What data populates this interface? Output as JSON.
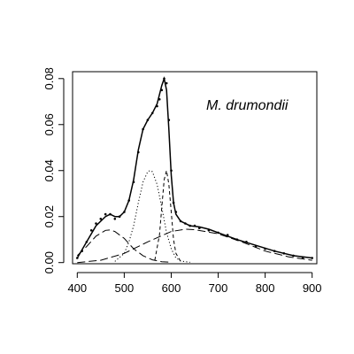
{
  "chart_data": {
    "type": "scatter",
    "title": "",
    "xlabel": "",
    "ylabel": "",
    "xlim": [
      390,
      910
    ],
    "ylim": [
      -0.0005,
      0.083
    ],
    "x_ticks": [
      400,
      500,
      600,
      700,
      800,
      900
    ],
    "y_ticks": [
      0.0,
      0.02,
      0.04,
      0.06,
      0.08
    ],
    "x_tick_labels": [
      "400",
      "500",
      "600",
      "700",
      "800",
      "900"
    ],
    "y_tick_labels": [
      "0.00",
      "0.02",
      "0.04",
      "0.06",
      "0.08"
    ],
    "annotation": "M. drumondii",
    "grid": false,
    "observed_points": {
      "x": [
        400,
        410,
        420,
        430,
        440,
        450,
        460,
        470,
        480,
        490,
        500,
        510,
        520,
        530,
        540,
        550,
        560,
        570,
        575,
        580,
        585,
        590,
        595,
        600,
        605,
        610,
        620,
        630,
        640,
        650,
        660,
        680,
        700,
        720,
        740,
        760,
        780,
        800,
        820,
        840,
        860,
        880,
        900
      ],
      "y": [
        0.002,
        0.005,
        0.009,
        0.014,
        0.017,
        0.019,
        0.021,
        0.021,
        0.019,
        0.02,
        0.022,
        0.027,
        0.035,
        0.048,
        0.058,
        0.062,
        0.065,
        0.068,
        0.071,
        0.075,
        0.08,
        0.078,
        0.062,
        0.04,
        0.026,
        0.022,
        0.018,
        0.017,
        0.016,
        0.016,
        0.015,
        0.014,
        0.013,
        0.012,
        0.01,
        0.009,
        0.007,
        0.006,
        0.005,
        0.004,
        0.003,
        0.002,
        0.002
      ]
    },
    "fit_curve": {
      "x": [
        400,
        420,
        440,
        460,
        470,
        480,
        490,
        500,
        510,
        520,
        530,
        540,
        550,
        560,
        570,
        580,
        585,
        590,
        595,
        600,
        605,
        610,
        620,
        640,
        660,
        680,
        700,
        740,
        780,
        820,
        860,
        900
      ],
      "y": [
        0.002,
        0.009,
        0.016,
        0.02,
        0.021,
        0.02,
        0.02,
        0.022,
        0.027,
        0.036,
        0.049,
        0.058,
        0.062,
        0.065,
        0.069,
        0.077,
        0.08,
        0.075,
        0.058,
        0.038,
        0.026,
        0.021,
        0.018,
        0.016,
        0.0155,
        0.0145,
        0.013,
        0.01,
        0.0075,
        0.005,
        0.003,
        0.002
      ]
    },
    "components": [
      {
        "style": "longdash",
        "x": [
          400,
          420,
          440,
          460,
          470,
          480,
          500,
          520,
          540,
          560,
          580,
          600
        ],
        "y": [
          0.003,
          0.007,
          0.0115,
          0.014,
          0.0142,
          0.0135,
          0.0105,
          0.006,
          0.003,
          0.0012,
          0.0004,
          0.0001
        ]
      },
      {
        "style": "dotted",
        "x": [
          480,
          500,
          510,
          520,
          530,
          540,
          550,
          555,
          560,
          570,
          580,
          590,
          600,
          610,
          620,
          640
        ],
        "y": [
          0.0005,
          0.004,
          0.009,
          0.016,
          0.026,
          0.035,
          0.0395,
          0.04,
          0.0395,
          0.034,
          0.024,
          0.013,
          0.006,
          0.002,
          0.0007,
          0.0001
        ]
      },
      {
        "style": "dashed",
        "x": [
          565,
          575,
          580,
          585,
          590,
          595,
          600,
          605,
          610,
          620
        ],
        "y": [
          0.001,
          0.012,
          0.024,
          0.036,
          0.04,
          0.034,
          0.022,
          0.01,
          0.004,
          0.0005
        ]
      },
      {
        "style": "longdash",
        "x": [
          400,
          450,
          500,
          550,
          600,
          630,
          650,
          700,
          750,
          800,
          850,
          900
        ],
        "y": [
          0.0,
          0.001,
          0.004,
          0.009,
          0.0135,
          0.0145,
          0.0143,
          0.0125,
          0.009,
          0.005,
          0.0025,
          0.001
        ]
      }
    ]
  }
}
